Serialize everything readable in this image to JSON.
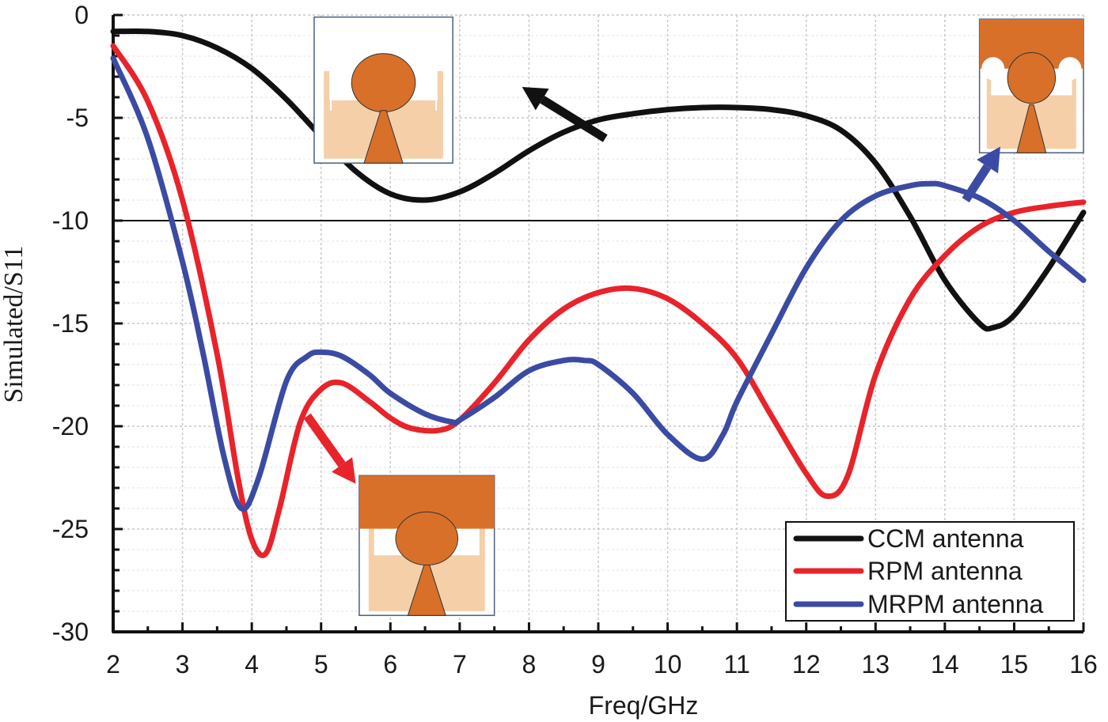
{
  "chart_data": {
    "type": "line",
    "title": "",
    "xlabel": "Freq/GHz",
    "ylabel": "Simulated/S11",
    "xlim": [
      2,
      16
    ],
    "ylim": [
      -30,
      0
    ],
    "xticks": [
      2,
      3,
      4,
      5,
      6,
      7,
      8,
      9,
      10,
      11,
      12,
      13,
      14,
      15,
      16
    ],
    "yticks": [
      0,
      -5,
      -10,
      -15,
      -20,
      -25,
      -30
    ],
    "grid": true,
    "reference_line": -10,
    "legend_position": "bottom-right",
    "series": [
      {
        "name": "CCM antenna",
        "color": "#111111",
        "x": [
          2,
          2.5,
          3,
          3.5,
          4,
          4.5,
          5,
          5.5,
          6,
          6.5,
          7,
          7.5,
          8,
          8.5,
          9,
          9.5,
          10,
          10.5,
          11,
          11.5,
          12,
          12.5,
          13,
          13.5,
          14,
          14.5,
          14.7,
          15,
          15.5,
          16
        ],
        "y": [
          -0.8,
          -0.8,
          -1.0,
          -1.6,
          -2.6,
          -4.1,
          -5.9,
          -7.6,
          -8.7,
          -9.0,
          -8.6,
          -7.7,
          -6.6,
          -5.7,
          -5.1,
          -4.8,
          -4.6,
          -4.5,
          -4.5,
          -4.6,
          -4.9,
          -5.6,
          -7.2,
          -9.8,
          -12.9,
          -15.0,
          -15.2,
          -14.6,
          -12.3,
          -9.6
        ]
      },
      {
        "name": "RPM antenna",
        "color": "#e8232a",
        "x": [
          2,
          2.5,
          3,
          3.5,
          3.8,
          4.0,
          4.2,
          4.4,
          4.7,
          5.0,
          5.3,
          5.7,
          6.0,
          6.3,
          6.7,
          7.0,
          7.5,
          8.0,
          8.5,
          9.0,
          9.5,
          10.0,
          10.5,
          11.0,
          11.5,
          12.0,
          12.3,
          12.6,
          13.0,
          13.5,
          14.0,
          14.5,
          15.0,
          15.5,
          16
        ],
        "y": [
          -1.5,
          -4.2,
          -9.0,
          -16.5,
          -22.5,
          -25.5,
          -26.2,
          -24.0,
          -19.8,
          -18.2,
          -17.9,
          -18.8,
          -19.6,
          -20.1,
          -20.2,
          -19.7,
          -17.9,
          -15.8,
          -14.3,
          -13.5,
          -13.3,
          -13.8,
          -15.0,
          -16.7,
          -19.5,
          -22.3,
          -23.4,
          -22.4,
          -17.5,
          -13.8,
          -11.7,
          -10.3,
          -9.6,
          -9.3,
          -9.1
        ]
      },
      {
        "name": "MRPM antenna",
        "color": "#3b4ba3",
        "x": [
          2,
          2.5,
          3,
          3.3,
          3.6,
          3.85,
          4.1,
          4.5,
          4.8,
          5.0,
          5.3,
          5.7,
          6.0,
          6.5,
          6.9,
          7.0,
          7.5,
          8.0,
          8.5,
          8.8,
          9.0,
          9.5,
          10.0,
          10.5,
          10.8,
          11.0,
          11.5,
          12.0,
          12.5,
          13.0,
          13.5,
          13.8,
          14.0,
          14.5,
          15.0,
          15.5,
          16
        ],
        "y": [
          -2.1,
          -6.0,
          -12.0,
          -16.5,
          -21.5,
          -24.0,
          -22.5,
          -17.8,
          -16.6,
          -16.4,
          -16.6,
          -17.5,
          -18.4,
          -19.4,
          -19.8,
          -19.7,
          -18.6,
          -17.3,
          -16.8,
          -16.8,
          -17.0,
          -18.4,
          -20.4,
          -21.6,
          -20.4,
          -18.8,
          -15.5,
          -12.3,
          -10.0,
          -8.8,
          -8.3,
          -8.2,
          -8.3,
          -8.9,
          -10.0,
          -11.5,
          -12.9
        ]
      }
    ],
    "annotations": [
      {
        "type": "arrow",
        "color": "#111111",
        "from": [
          9.1,
          -6.0
        ],
        "to": [
          7.9,
          -3.5
        ]
      },
      {
        "type": "arrow",
        "color": "#e8232a",
        "from": [
          4.8,
          -19.5
        ],
        "to": [
          5.5,
          -22.8
        ]
      },
      {
        "type": "arrow",
        "color": "#3b4ba3",
        "from": [
          14.3,
          -9.0
        ],
        "to": [
          14.8,
          -6.4
        ]
      }
    ],
    "insets": [
      {
        "name": "ccm-inset",
        "x0": 4.9,
        "x1": 6.9,
        "y0": -0.1,
        "y1": -7.2,
        "variant": "ccm"
      },
      {
        "name": "rpm-inset",
        "x0": 5.55,
        "x1": 7.5,
        "y0": -22.4,
        "y1": -29.2,
        "variant": "rpm"
      },
      {
        "name": "mrpm-inset",
        "x0": 14.5,
        "x1": 16.0,
        "y0": -0.2,
        "y1": -6.7,
        "variant": "mrpm"
      }
    ]
  }
}
